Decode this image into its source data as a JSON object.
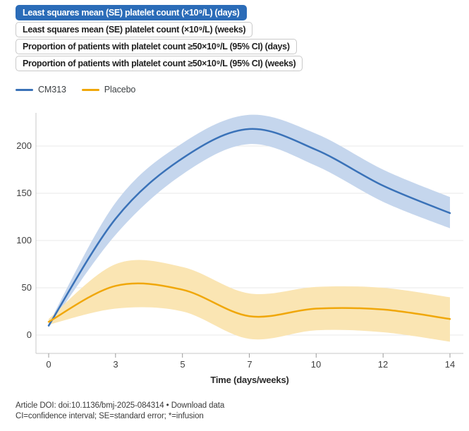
{
  "tabs": [
    {
      "label": "Least squares mean (SE) platelet count (×10⁹/L) (days)",
      "active": true
    },
    {
      "label": "Least squares mean (SE) platelet count (×10⁹/L) (weeks)",
      "active": false
    },
    {
      "label": "Proportion of patients with platelet count ≥50×10⁹/L (95% CI) (days)",
      "active": false
    },
    {
      "label": "Proportion of patients with platelet count ≥50×10⁹/L (95% CI) (weeks)",
      "active": false
    }
  ],
  "footer": {
    "doi_text": "Article DOI: doi:10.1136/bmj-2025-084314 • ",
    "download_label": "Download data",
    "abbreviations": "CI=confidence interval; SE=standard error; *=infusion"
  },
  "colors": {
    "active_tab_bg": "#2b6cb8",
    "active_tab_text": "#ffffff",
    "gridline": "#e8e8e8",
    "axis_line": "#c9c9c9",
    "tick": "#9b9b9b",
    "label_text": "#3f3f3f"
  },
  "chart_data": {
    "type": "line",
    "title": "Least squares mean (SE) platelet count (×10⁹/L) (days)",
    "xlabel": "Time (days/weeks)",
    "ylabel": "",
    "x_axis_type": "categorical",
    "categories": [
      0,
      3,
      5,
      7,
      10,
      12,
      14
    ],
    "yticks": [
      0,
      50,
      100,
      150,
      200
    ],
    "ylim": [
      -20,
      237
    ],
    "grid": true,
    "legend_position": "top-left",
    "series": [
      {
        "name": "CM313",
        "color": "#3a72b8",
        "band_color": "#c5d6ed",
        "values": [
          10,
          123,
          187,
          218,
          196,
          158,
          129
        ],
        "upper": [
          12,
          140,
          203,
          233,
          213,
          175,
          146
        ],
        "lower": [
          8,
          106,
          170,
          202,
          179,
          141,
          113
        ]
      },
      {
        "name": "Placebo",
        "color": "#f0a70a",
        "band_color": "#fae5b3",
        "values": [
          14,
          52,
          48,
          20,
          28,
          27,
          17
        ],
        "upper": [
          17,
          75,
          72,
          44,
          51,
          50,
          40
        ],
        "lower": [
          11,
          28,
          25,
          -4,
          5,
          3,
          -7
        ]
      }
    ]
  }
}
